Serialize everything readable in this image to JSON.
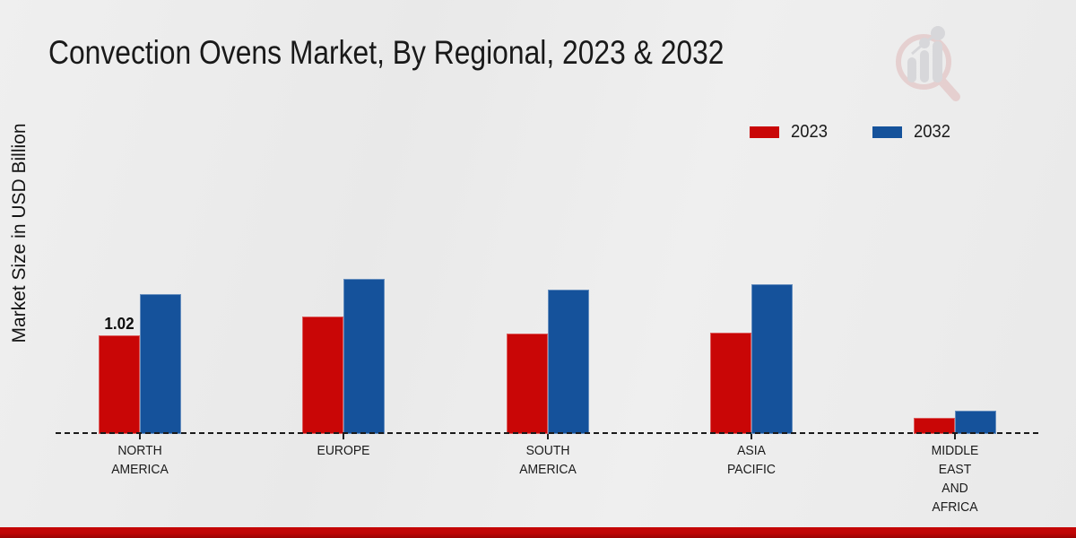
{
  "header": {
    "title": "Convection Ovens Market, By Regional, 2023 & 2032"
  },
  "chart_data": {
    "type": "bar",
    "title": "Convection Ovens Market, By Regional, 2023 & 2032",
    "xlabel": "",
    "ylabel": "Market Size in USD Billion",
    "legend_position": "top-right",
    "grid": false,
    "baseline_style": "dashed",
    "categories": [
      "NORTH AMERICA",
      "EUROPE",
      "SOUTH AMERICA",
      "ASIA PACIFIC",
      "MIDDLE EAST AND AFRICA"
    ],
    "category_lines": [
      [
        "NORTH",
        "AMERICA"
      ],
      [
        "EUROPE"
      ],
      [
        "SOUTH",
        "AMERICA"
      ],
      [
        "ASIA",
        "PACIFIC"
      ],
      [
        "MIDDLE",
        "EAST",
        "AND",
        "AFRICA"
      ]
    ],
    "series": [
      {
        "name": "2023",
        "color": "#c90606",
        "values": [
          1.02,
          1.21,
          1.04,
          1.05,
          0.17
        ]
      },
      {
        "name": "2032",
        "color": "#15529b",
        "values": [
          1.44,
          1.6,
          1.49,
          1.55,
          0.24
        ]
      }
    ],
    "data_labels": [
      {
        "series": "2023",
        "category": "NORTH AMERICA",
        "text": "1.02"
      }
    ],
    "ylim": [
      0,
      1.85
    ]
  },
  "colors": {
    "background": "#ebebeb",
    "footer_top": "#c50707",
    "footer_mid": "#bf0505",
    "footer_bottom": "#990303",
    "logo_ring": "#dfb4b4",
    "logo_gray": "#c3c3c9"
  },
  "icons": {
    "logo": "magnifier-bar-chart-logo-watermark"
  }
}
